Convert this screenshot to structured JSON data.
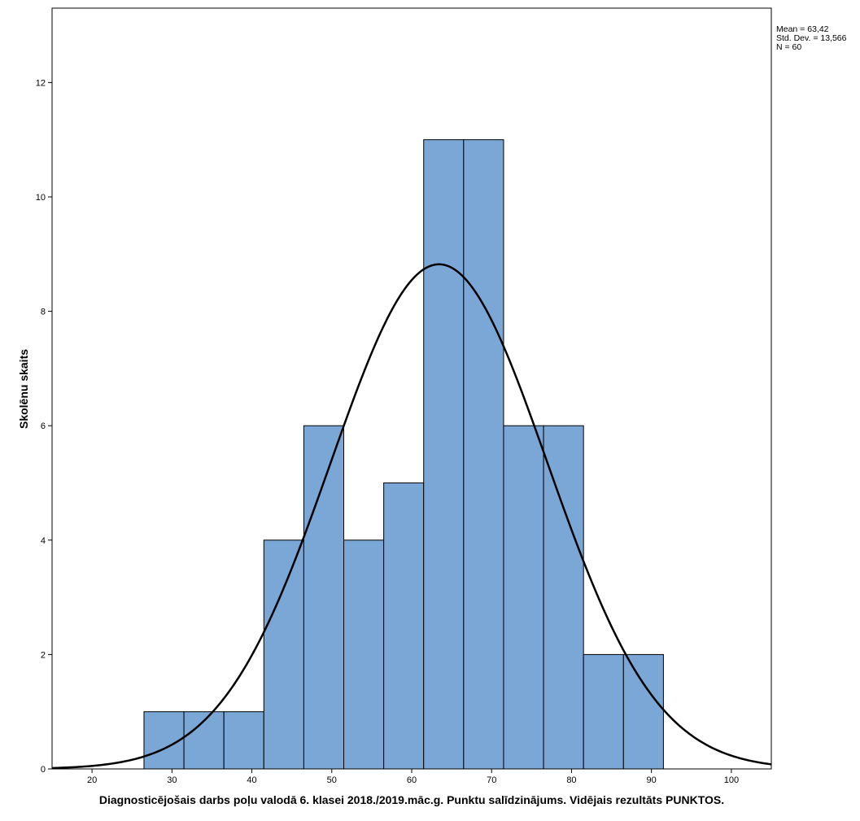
{
  "chart_data": {
    "type": "bar",
    "subtype": "histogram",
    "title": "",
    "xlabel": "Diagnosticējošais darbs poļu valodā 6. klasei 2018./2019.māc.g. Punktu salīdzinājums. Vidējais rezultāts PUNKTOS.",
    "ylabel": "Skolēnu skaits",
    "xlim": [
      15,
      105
    ],
    "ylim": [
      0,
      13.3
    ],
    "x_ticks": [
      "20",
      "30",
      "40",
      "50",
      "60",
      "70",
      "80",
      "90",
      "100"
    ],
    "y_ticks": [
      "0",
      "2",
      "4",
      "6",
      "8",
      "10",
      "12"
    ],
    "bin_width": 5,
    "bins": [
      {
        "start": 26.5,
        "end": 31.5,
        "count": 1
      },
      {
        "start": 31.5,
        "end": 36.5,
        "count": 1
      },
      {
        "start": 36.5,
        "end": 41.5,
        "count": 1
      },
      {
        "start": 41.5,
        "end": 46.5,
        "count": 4
      },
      {
        "start": 46.5,
        "end": 51.5,
        "count": 6
      },
      {
        "start": 51.5,
        "end": 56.5,
        "count": 4
      },
      {
        "start": 56.5,
        "end": 61.5,
        "count": 5
      },
      {
        "start": 61.5,
        "end": 66.5,
        "count": 11
      },
      {
        "start": 66.5,
        "end": 71.5,
        "count": 11
      },
      {
        "start": 71.5,
        "end": 76.5,
        "count": 6
      },
      {
        "start": 76.5,
        "end": 81.5,
        "count": 6
      },
      {
        "start": 81.5,
        "end": 86.5,
        "count": 2
      },
      {
        "start": 86.5,
        "end": 91.5,
        "count": 2
      }
    ],
    "normal_curve": {
      "mean": 63.42,
      "std_dev": 13.566,
      "n": 60
    },
    "bar_color": "#7BA7D6",
    "grid": false,
    "legend": "none"
  },
  "stats": {
    "mean_text": "Mean = 63,42",
    "std_text": "Std. Dev. = 13,566",
    "n_text": "N = 60"
  }
}
